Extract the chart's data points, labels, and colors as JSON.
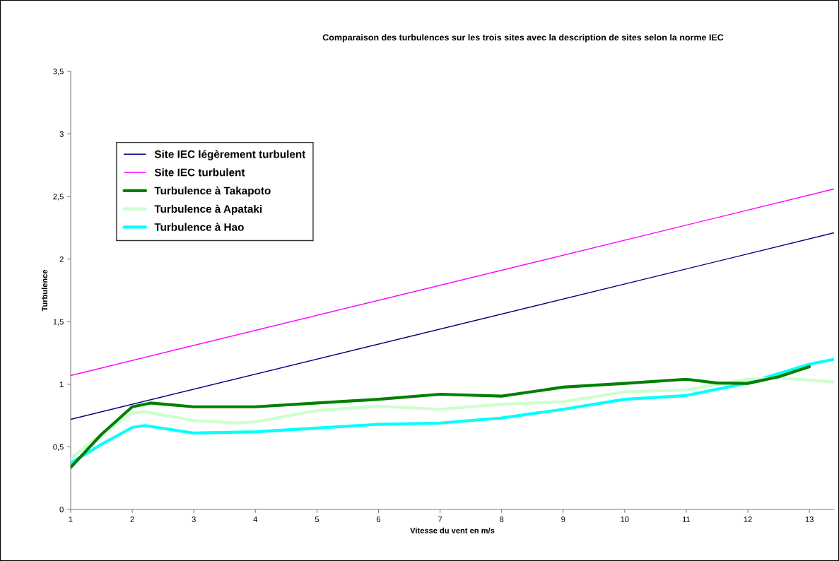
{
  "chart_data": {
    "type": "line",
    "title": "Comparaison des turbulences sur les trois sites avec la description de sites selon la norme IEC",
    "xlabel": "Vitesse du vent en m/s",
    "ylabel": "Turbulence",
    "xlim": [
      1,
      13.4
    ],
    "xticks": [
      1,
      2,
      3,
      4,
      5,
      6,
      7,
      8,
      9,
      10,
      11,
      12,
      13
    ],
    "ylim": [
      0,
      3.5
    ],
    "yticks": [
      0,
      {
        "value": 0.5,
        "label": "0,5"
      },
      1,
      {
        "value": 1.5,
        "label": "1,5"
      },
      2,
      {
        "value": 2.5,
        "label": "2,5"
      },
      3,
      {
        "value": 3.5,
        "label": "3,5"
      }
    ],
    "grid": false,
    "legend": "top left",
    "marker": "none",
    "line_style": "solid",
    "series": [
      {
        "name": "Site IEC légèrement turbulent",
        "color": "#000080",
        "x": [
          1,
          13.4
        ],
        "values": [
          0.72,
          2.21
        ]
      },
      {
        "name": "Site IEC turbulent",
        "color": "#ff00ff",
        "x": [
          1,
          13.4
        ],
        "values": [
          1.07,
          2.56
        ]
      },
      {
        "name": "Turbulence à Takapoto",
        "color": "#008000",
        "x": [
          1,
          1.5,
          2,
          2.3,
          3,
          4,
          5,
          6,
          7,
          8,
          9,
          10,
          11,
          11.5,
          12,
          12.5,
          13
        ],
        "values": [
          0.335,
          0.6,
          0.82,
          0.85,
          0.82,
          0.82,
          0.85,
          0.88,
          0.92,
          0.905,
          0.977,
          1.007,
          1.04,
          1.01,
          1.007,
          1.06,
          1.14
        ]
      },
      {
        "name": "Turbulence à Apataki",
        "color": "#ccffcc",
        "x": [
          1,
          1.5,
          2,
          2.2,
          3,
          3.7,
          4,
          5,
          6,
          7,
          8,
          9,
          10,
          11,
          12,
          12.5,
          13.4
        ],
        "values": [
          0.41,
          0.6,
          0.77,
          0.78,
          0.71,
          0.69,
          0.7,
          0.79,
          0.825,
          0.8,
          0.84,
          0.86,
          0.94,
          0.955,
          1.04,
          1.05,
          1.02
        ]
      },
      {
        "name": "Turbulence à Hao",
        "color": "#00ffff",
        "x": [
          1,
          1.5,
          2,
          2.2,
          3,
          4,
          5,
          6,
          7,
          8,
          9,
          10,
          11,
          12,
          13,
          13.4
        ],
        "values": [
          0.37,
          0.52,
          0.655,
          0.67,
          0.61,
          0.62,
          0.65,
          0.68,
          0.69,
          0.73,
          0.8,
          0.88,
          0.91,
          1.01,
          1.16,
          1.2
        ]
      }
    ]
  }
}
